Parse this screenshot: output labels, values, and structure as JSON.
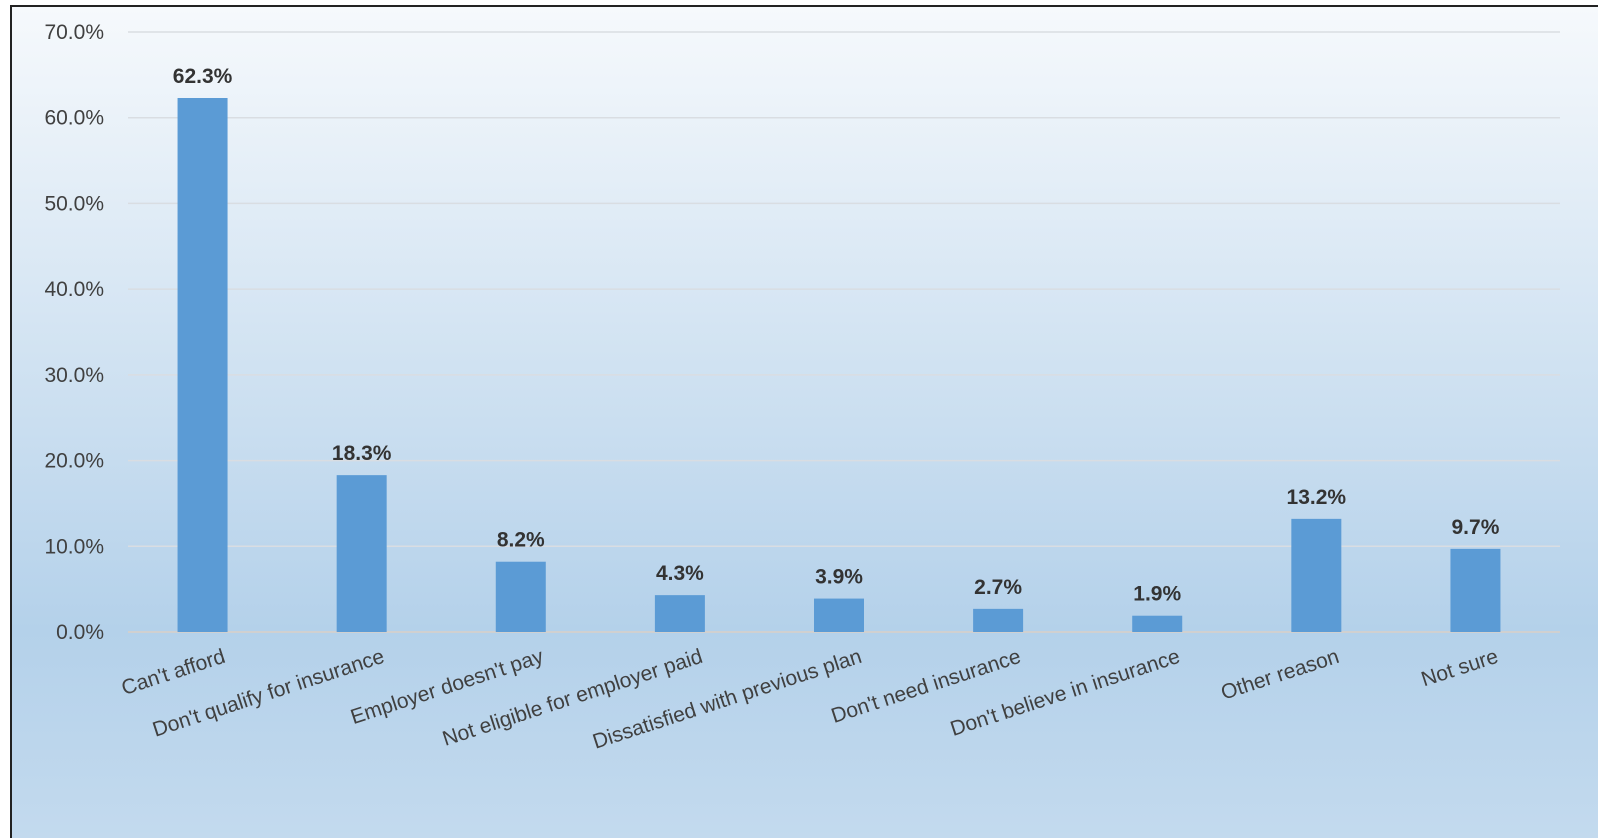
{
  "chart_data": {
    "type": "bar",
    "title": "",
    "xlabel": "",
    "ylabel": "",
    "categories": [
      "Can't afford",
      "Don't qualify for insurance",
      "Employer doesn't pay",
      "Not eligible for employer paid",
      "Dissatisfied with previous plan",
      "Don't need insurance",
      "Don't believe in insurance",
      "Other reason",
      "Not sure"
    ],
    "values": [
      62.3,
      18.3,
      8.2,
      4.3,
      3.9,
      2.7,
      1.9,
      13.2,
      9.7
    ],
    "data_labels": [
      "62.3%",
      "18.3%",
      "8.2%",
      "4.3%",
      "3.9%",
      "2.7%",
      "1.9%",
      "13.2%",
      "9.7%"
    ],
    "ylim": [
      0,
      70
    ],
    "yticks": [
      0,
      10,
      20,
      30,
      40,
      50,
      60,
      70
    ],
    "ytick_labels": [
      "0.0%",
      "10.0%",
      "20.0%",
      "30.0%",
      "40.0%",
      "50.0%",
      "60.0%",
      "70.0%"
    ],
    "grid": true,
    "legend": "none",
    "colors": {
      "bar": "#5b9bd5",
      "grid": "#d9dde2",
      "background_top": "#f6f9fc",
      "background_bottom": "#b2d0ea"
    }
  }
}
